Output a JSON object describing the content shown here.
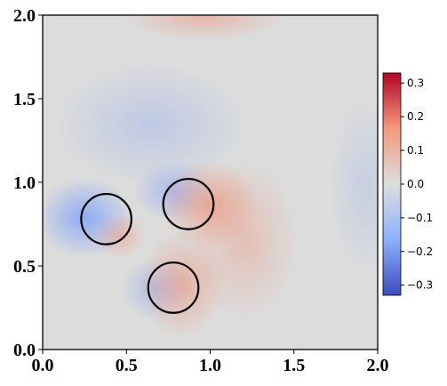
{
  "chart_data": {
    "type": "field",
    "xlim": [
      0,
      2
    ],
    "ylim": [
      0,
      2
    ],
    "xticks": [
      {
        "value": 0,
        "label": "0.0"
      },
      {
        "value": 0.5,
        "label": "0.5"
      },
      {
        "value": 1,
        "label": "1.0"
      },
      {
        "value": 1.5,
        "label": "1.5"
      },
      {
        "value": 2,
        "label": "2.0"
      }
    ],
    "yticks": [
      {
        "value": 0,
        "label": "0.0"
      },
      {
        "value": 0.5,
        "label": "0.5"
      },
      {
        "value": 1,
        "label": "1.0"
      },
      {
        "value": 1.5,
        "label": "1.5"
      },
      {
        "value": 2,
        "label": "2.0"
      }
    ],
    "circles": [
      {
        "x": 0.38,
        "y": 0.78,
        "r": 0.15
      },
      {
        "x": 0.87,
        "y": 0.87,
        "r": 0.15
      },
      {
        "x": 0.78,
        "y": 0.37,
        "r": 0.15
      }
    ],
    "circle_color": "#000000",
    "colormap": "coolwarm",
    "clim": [
      -0.33,
      0.33
    ],
    "cticks": [
      {
        "value": -0.3,
        "label": "−0.3"
      },
      {
        "value": -0.2,
        "label": "−0.2"
      },
      {
        "value": -0.1,
        "label": "−0.1"
      },
      {
        "value": 0,
        "label": "0.0"
      },
      {
        "value": 0.1,
        "label": "0.1"
      },
      {
        "value": 0.2,
        "label": "0.2"
      },
      {
        "value": 0.3,
        "label": "0.3"
      }
    ]
  }
}
